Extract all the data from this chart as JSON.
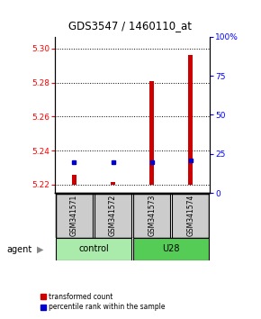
{
  "title": "GDS3547 / 1460110_at",
  "samples": [
    "GSM341571",
    "GSM341572",
    "GSM341573",
    "GSM341574"
  ],
  "red_values": [
    5.2255,
    5.2215,
    5.281,
    5.296
  ],
  "blue_values": [
    5.233,
    5.233,
    5.233,
    5.234
  ],
  "ylim_left": [
    5.215,
    5.307
  ],
  "ylim_right": [
    0,
    100
  ],
  "yticks_left": [
    5.22,
    5.24,
    5.26,
    5.28,
    5.3
  ],
  "yticks_right": [
    0,
    25,
    50,
    75,
    100
  ],
  "ytick_labels_right": [
    "0",
    "25",
    "50",
    "75",
    "100%"
  ],
  "bar_bottom": 5.22,
  "red_color": "#cc0000",
  "blue_color": "#0000cc",
  "sample_box_color": "#cccccc",
  "legend_red": "transformed count",
  "legend_blue": "percentile rank within the sample",
  "agent_label": "agent",
  "control_color": "#aaeaaa",
  "u28_color": "#55cc55",
  "bar_width": 0.12
}
